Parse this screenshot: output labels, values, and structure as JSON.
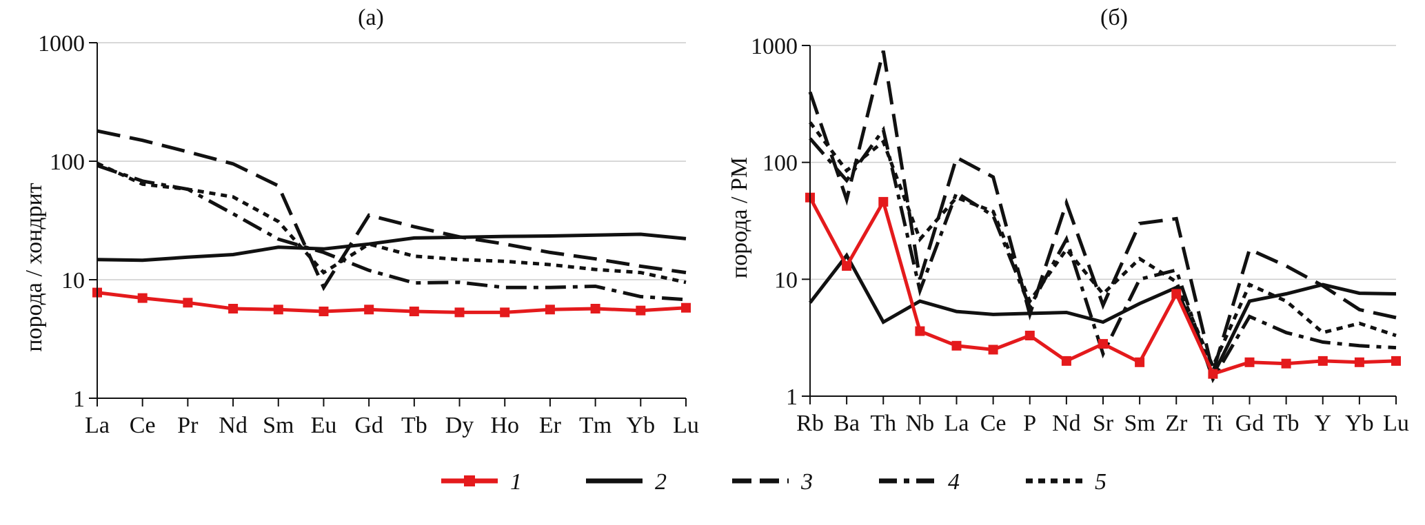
{
  "legend": [
    {
      "label": "1",
      "color": "#e41a1c",
      "style": "solid-marker"
    },
    {
      "label": "2",
      "color": "#111111",
      "style": "solid"
    },
    {
      "label": "3",
      "color": "#111111",
      "style": "dashed"
    },
    {
      "label": "4",
      "color": "#111111",
      "style": "dashdot"
    },
    {
      "label": "5",
      "color": "#111111",
      "style": "dotted"
    }
  ],
  "chart_data": [
    {
      "type": "line",
      "title": "(a)",
      "ylabel": "порода / хондрит",
      "yscale": "log",
      "ylim": [
        1,
        1000
      ],
      "yticks": [
        "1",
        "10",
        "100",
        "1000"
      ],
      "grid": "horizontal",
      "categories": [
        "La",
        "Ce",
        "Pr",
        "Nd",
        "Sm",
        "Eu",
        "Gd",
        "Tb",
        "Dy",
        "Ho",
        "Er",
        "Tm",
        "Yb",
        "Lu"
      ],
      "series": [
        {
          "name": "1",
          "values": [
            7.8,
            7.0,
            6.4,
            5.7,
            5.6,
            5.4,
            5.6,
            5.4,
            5.3,
            5.3,
            5.6,
            5.7,
            5.5,
            5.8
          ]
        },
        {
          "name": "2",
          "values": [
            14.8,
            14.6,
            15.5,
            16.3,
            18.8,
            18.2,
            20,
            22.5,
            22.8,
            23.2,
            23.4,
            23.8,
            24.2,
            22.2
          ]
        },
        {
          "name": "3",
          "values": [
            180,
            150,
            120,
            95,
            62,
            8.6,
            35,
            28,
            23,
            20,
            17,
            15,
            13,
            11.5
          ]
        },
        {
          "name": "4",
          "values": [
            92,
            68,
            58,
            36,
            22,
            17,
            12,
            9.4,
            9.5,
            8.6,
            8.6,
            8.8,
            7.2,
            6.8
          ]
        },
        {
          "name": "5",
          "values": [
            96,
            64,
            58,
            50,
            31,
            11.5,
            20,
            15.8,
            14.8,
            14.3,
            13.4,
            12.2,
            11.5,
            9.5
          ]
        }
      ]
    },
    {
      "type": "line",
      "title": "(б)",
      "ylabel": "порода / PM",
      "yscale": "log",
      "ylim": [
        1,
        1000
      ],
      "yticks": [
        "1",
        "10",
        "100",
        "1000"
      ],
      "grid": "horizontal",
      "categories": [
        "Rb",
        "Ba",
        "Th",
        "Nb",
        "La",
        "Ce",
        "P",
        "Nd",
        "Sr",
        "Sm",
        "Zr",
        "Ti",
        "Gd",
        "Tb",
        "Y",
        "Yb",
        "Lu"
      ],
      "series": [
        {
          "name": "1",
          "values": [
            50,
            13,
            46,
            3.6,
            2.7,
            2.5,
            3.3,
            2.0,
            2.8,
            1.95,
            7.5,
            1.55,
            1.95,
            1.9,
            2.0,
            1.95,
            2.0
          ]
        },
        {
          "name": "2",
          "values": [
            6.3,
            16,
            4.3,
            6.5,
            5.3,
            5.0,
            5.1,
            5.2,
            4.3,
            6.2,
            8.5,
            1.5,
            6.5,
            7.5,
            9.0,
            7.6,
            7.5
          ]
        },
        {
          "name": "3",
          "values": [
            400,
            48,
            900,
            10,
            110,
            75,
            5.0,
            45,
            6.0,
            30,
            33,
            1.6,
            18,
            13,
            8.8,
            5.5,
            4.7
          ]
        },
        {
          "name": "4",
          "values": [
            160,
            70,
            190,
            8.0,
            55,
            35,
            5.8,
            22,
            2.3,
            10,
            12,
            1.4,
            4.8,
            3.5,
            2.9,
            2.7,
            2.6
          ]
        },
        {
          "name": "5",
          "values": [
            220,
            85,
            150,
            22,
            50,
            38,
            6.5,
            18,
            7.5,
            15,
            9.5,
            1.8,
            9.0,
            6.5,
            3.5,
            4.2,
            3.3
          ]
        }
      ]
    }
  ]
}
